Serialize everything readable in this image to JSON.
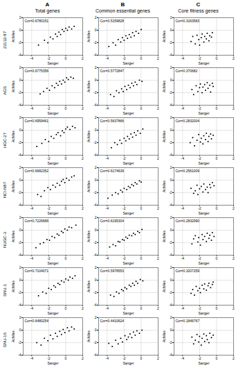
{
  "panel_labels": [
    "A",
    "B",
    "C"
  ],
  "column_titles": [
    "Total genes",
    "Common essential genes",
    "Core fitness genes"
  ],
  "row_labels": [
    "23132-87",
    "AGS",
    "HGC-27",
    "NCI-N87",
    "NUGC-3",
    "SNU-1",
    "SNU-16"
  ],
  "chart_data": [
    {
      "type": "scatter",
      "annotation": "Cor=0.6780151",
      "xlabel": "Sanger",
      "ylabel": "Achilles",
      "xlim": [
        -5,
        2
      ],
      "ylim": [
        -4,
        2
      ],
      "xticks": [
        -4,
        -2,
        0,
        2
      ],
      "yticks": [
        -4,
        -2,
        0,
        2
      ],
      "grid": true,
      "color": "#000000",
      "marker": "circle",
      "x": [
        -3.2,
        -2.5,
        -2.1,
        -1.8,
        -1.5,
        -1.2,
        -1.0,
        -0.8,
        -0.6,
        -0.4,
        -0.2,
        0.0,
        0.2,
        0.4,
        0.7,
        1.0
      ],
      "y": [
        -2.4,
        -1.6,
        -2.0,
        -1.1,
        -1.4,
        -0.6,
        -1.0,
        -0.3,
        -0.7,
        0.1,
        -0.2,
        0.3,
        0.0,
        0.5,
        0.2,
        0.6
      ]
    },
    {
      "type": "scatter",
      "annotation": "Cor=0.5159828",
      "xlabel": "Sanger",
      "ylabel": "Achilles",
      "xlim": [
        -5,
        2
      ],
      "ylim": [
        -4,
        2
      ],
      "xticks": [
        -4,
        -2,
        0,
        2
      ],
      "yticks": [
        -4,
        -2,
        0,
        2
      ],
      "grid": true,
      "color": "#000000",
      "marker": "circle",
      "x": [
        -3.8,
        -3.3,
        -3.0,
        -2.7,
        -2.4,
        -2.2,
        -2.0,
        -1.8,
        -1.6,
        -1.4,
        -1.2,
        -1.0,
        -0.8,
        -0.6,
        -0.3,
        0.0
      ],
      "y": [
        -2.6,
        -2.0,
        -2.4,
        -1.5,
        -1.9,
        -1.2,
        -1.6,
        -0.9,
        -1.3,
        -0.7,
        -1.1,
        -0.4,
        -0.9,
        -0.2,
        -0.5,
        0.1
      ]
    },
    {
      "type": "scatter",
      "annotation": "Cor=0.3163583",
      "xlabel": "Sanger",
      "ylabel": "Achilles",
      "xlim": [
        -5,
        2
      ],
      "ylim": [
        -4,
        2
      ],
      "xticks": [
        -4,
        -2,
        0,
        2
      ],
      "yticks": [
        -4,
        -2,
        0,
        2
      ],
      "grid": true,
      "color": "#000000",
      "marker": "circle",
      "x": [
        -3.0,
        -2.8,
        -2.5,
        -2.3,
        -2.1,
        -2.0,
        -1.8,
        -1.7,
        -1.5,
        -1.4,
        -1.2,
        -1.1,
        -0.9,
        -0.8,
        -0.6,
        -0.5
      ],
      "y": [
        -1.8,
        -1.0,
        -2.2,
        -0.8,
        -1.5,
        -2.4,
        -1.2,
        -0.6,
        -1.9,
        -1.0,
        -1.4,
        -0.5,
        -1.7,
        -0.9,
        -1.1,
        -0.4
      ]
    },
    {
      "type": "scatter",
      "annotation": "Cor=0.6775356",
      "xlabel": "Sanger",
      "ylabel": "Achilles",
      "xlim": [
        -5,
        2
      ],
      "ylim": [
        -4,
        2
      ],
      "xticks": [
        -4,
        -2,
        0,
        2
      ],
      "yticks": [
        -4,
        -2,
        0,
        2
      ],
      "grid": true,
      "color": "#000000",
      "marker": "circle",
      "x": [
        -3.0,
        -2.6,
        -2.2,
        -1.9,
        -1.6,
        -1.3,
        -1.1,
        -0.9,
        -0.7,
        -0.5,
        -0.3,
        -0.1,
        0.1,
        0.3,
        0.6,
        0.9
      ],
      "y": [
        -2.2,
        -1.8,
        -1.3,
        -1.6,
        -0.9,
        -1.2,
        -0.5,
        -0.8,
        -0.2,
        -0.6,
        0.0,
        -0.3,
        0.4,
        0.1,
        0.5,
        0.3
      ]
    },
    {
      "type": "scatter",
      "annotation": "Cor=0.5772847",
      "xlabel": "Sanger",
      "ylabel": "Achilles",
      "xlim": [
        -5,
        2
      ],
      "ylim": [
        -4,
        2
      ],
      "xticks": [
        -4,
        -2,
        0,
        2
      ],
      "yticks": [
        -4,
        -2,
        0,
        2
      ],
      "grid": true,
      "color": "#000000",
      "marker": "circle",
      "x": [
        -3.6,
        -3.2,
        -2.9,
        -2.6,
        -2.3,
        -2.1,
        -1.9,
        -1.7,
        -1.5,
        -1.3,
        -1.1,
        -0.9,
        -0.7,
        -0.5,
        -0.2,
        0.1
      ],
      "y": [
        -2.3,
        -2.6,
        -1.7,
        -2.0,
        -1.4,
        -1.8,
        -1.0,
        -1.5,
        -0.8,
        -1.2,
        -0.5,
        -0.9,
        -0.3,
        -0.7,
        0.0,
        -0.2
      ]
    },
    {
      "type": "scatter",
      "annotation": "Cor=0.370682",
      "xlabel": "Sanger",
      "ylabel": "Achilles",
      "xlim": [
        -5,
        2
      ],
      "ylim": [
        -4,
        2
      ],
      "xticks": [
        -4,
        -2,
        0,
        2
      ],
      "yticks": [
        -4,
        -2,
        0,
        2
      ],
      "grid": true,
      "color": "#000000",
      "marker": "circle",
      "x": [
        -2.9,
        -2.7,
        -2.4,
        -2.2,
        -2.0,
        -1.9,
        -1.7,
        -1.6,
        -1.4,
        -1.3,
        -1.1,
        -1.0,
        -0.8,
        -0.7,
        -0.5,
        -0.4
      ],
      "y": [
        -1.5,
        -2.3,
        -0.9,
        -1.8,
        -1.2,
        -0.6,
        -2.0,
        -1.1,
        -0.7,
        -1.6,
        -0.4,
        -1.3,
        -0.8,
        -1.9,
        -0.5,
        -1.0
      ]
    },
    {
      "type": "scatter",
      "annotation": "Cor=0.6959461",
      "xlabel": "Sanger",
      "ylabel": "Achilles",
      "xlim": [
        -5,
        2
      ],
      "ylim": [
        -4,
        2
      ],
      "xticks": [
        -4,
        -2,
        0,
        2
      ],
      "yticks": [
        -4,
        -2,
        0,
        2
      ],
      "grid": true,
      "color": "#000000",
      "marker": "circle",
      "x": [
        -3.4,
        -2.8,
        -2.4,
        -2.0,
        -1.7,
        -1.4,
        -1.1,
        -0.9,
        -0.6,
        -0.4,
        -0.2,
        0.0,
        0.2,
        0.5,
        0.8,
        1.1
      ],
      "y": [
        -2.6,
        -2.1,
        -1.5,
        -1.8,
        -1.0,
        -1.3,
        -0.7,
        -0.4,
        -0.9,
        -0.1,
        -0.4,
        0.2,
        0.5,
        0.1,
        0.6,
        0.4
      ]
    },
    {
      "type": "scatter",
      "annotation": "Cor=0.5637866",
      "xlabel": "Sanger",
      "ylabel": "Achilles",
      "xlim": [
        -5,
        2
      ],
      "ylim": [
        -4,
        2
      ],
      "xticks": [
        -4,
        -2,
        0,
        2
      ],
      "yticks": [
        -4,
        -2,
        0,
        2
      ],
      "grid": true,
      "color": "#000000",
      "marker": "circle",
      "x": [
        -3.5,
        -3.1,
        -2.8,
        -2.5,
        -2.3,
        -2.0,
        -1.8,
        -1.6,
        -1.4,
        -1.2,
        -1.0,
        -0.8,
        -0.6,
        -0.4,
        -0.1,
        0.2
      ],
      "y": [
        -2.8,
        -2.0,
        -2.3,
        -1.6,
        -2.1,
        -1.3,
        -1.7,
        -1.0,
        -1.4,
        -0.6,
        -1.1,
        -0.4,
        -0.8,
        -0.1,
        -0.5,
        0.2
      ]
    },
    {
      "type": "scatter",
      "annotation": "Cor=0.2832004",
      "xlabel": "Sanger",
      "ylabel": "Achilles",
      "xlim": [
        -5,
        2
      ],
      "ylim": [
        -4,
        2
      ],
      "xticks": [
        -4,
        -2,
        0,
        2
      ],
      "yticks": [
        -4,
        -2,
        0,
        2
      ],
      "grid": true,
      "color": "#000000",
      "marker": "circle",
      "x": [
        -3.1,
        -2.8,
        -2.6,
        -2.3,
        -2.1,
        -1.9,
        -1.8,
        -1.6,
        -1.5,
        -1.3,
        -1.2,
        -1.0,
        -0.9,
        -0.7,
        -0.6,
        -0.4
      ],
      "y": [
        -2.0,
        -1.2,
        -2.5,
        -1.6,
        -0.7,
        -1.9,
        -1.3,
        -2.2,
        -0.9,
        -1.5,
        -0.5,
        -1.8,
        -1.0,
        -0.6,
        -1.4,
        -0.8
      ]
    },
    {
      "type": "scatter",
      "annotation": "Cor=0.6682352",
      "xlabel": "Sanger",
      "ylabel": "Achilles",
      "xlim": [
        -5,
        2
      ],
      "ylim": [
        -4,
        2
      ],
      "xticks": [
        -4,
        -2,
        0,
        2
      ],
      "yticks": [
        -4,
        -2,
        0,
        2
      ],
      "grid": true,
      "color": "#000000",
      "marker": "circle",
      "x": [
        -3.3,
        -2.9,
        -2.5,
        -2.1,
        -1.8,
        -1.5,
        -1.2,
        -1.0,
        -0.7,
        -0.5,
        -0.3,
        -0.1,
        0.1,
        0.4,
        0.7,
        1.0
      ],
      "y": [
        -2.3,
        -2.6,
        -1.7,
        -1.2,
        -1.5,
        -0.8,
        -1.1,
        -0.5,
        -0.8,
        -0.2,
        0.1,
        -0.4,
        0.3,
        0.0,
        0.5,
        0.7
      ]
    },
    {
      "type": "scatter",
      "annotation": "Cor=0.6174639",
      "xlabel": "Sanger",
      "ylabel": "Achilles",
      "xlim": [
        -5,
        2
      ],
      "ylim": [
        -4,
        2
      ],
      "xticks": [
        -4,
        -2,
        0,
        2
      ],
      "yticks": [
        -4,
        -2,
        0,
        2
      ],
      "grid": true,
      "color": "#000000",
      "marker": "circle",
      "x": [
        -3.9,
        -3.4,
        -3.0,
        -2.7,
        -2.4,
        -2.2,
        -2.0,
        -1.7,
        -1.5,
        -1.3,
        -1.1,
        -0.9,
        -0.7,
        -0.5,
        -0.2,
        0.0
      ],
      "y": [
        -2.9,
        -2.4,
        -2.0,
        -2.2,
        -1.6,
        -1.9,
        -1.3,
        -1.5,
        -1.0,
        -1.2,
        -0.7,
        -0.9,
        -0.4,
        -0.6,
        -0.1,
        -0.3
      ]
    },
    {
      "type": "scatter",
      "annotation": "Cor=0.2561009",
      "xlabel": "Sanger",
      "ylabel": "Achilles",
      "xlim": [
        -5,
        2
      ],
      "ylim": [
        -4,
        2
      ],
      "xticks": [
        -4,
        -2,
        0,
        2
      ],
      "yticks": [
        -4,
        -2,
        0,
        2
      ],
      "grid": true,
      "color": "#000000",
      "marker": "circle",
      "x": [
        -3.0,
        -2.7,
        -2.5,
        -2.3,
        -2.2,
        -2.0,
        -1.8,
        -1.6,
        -1.5,
        -1.3,
        -1.1,
        -1.0,
        -0.8,
        -0.7,
        -0.5,
        -0.3
      ],
      "y": [
        -1.3,
        -2.1,
        -1.7,
        -0.8,
        -2.3,
        -1.4,
        -1.0,
        -1.9,
        -0.6,
        -1.5,
        -1.1,
        -2.0,
        -0.7,
        -1.2,
        -0.4,
        -0.9
      ]
    },
    {
      "type": "scatter",
      "annotation": "Cor=0.7226689",
      "xlabel": "Sanger",
      "ylabel": "Achilles",
      "xlim": [
        -5,
        2
      ],
      "ylim": [
        -4,
        2
      ],
      "xticks": [
        -4,
        -2,
        0,
        2
      ],
      "yticks": [
        -4,
        -2,
        0,
        2
      ],
      "grid": true,
      "color": "#000000",
      "marker": "circle",
      "x": [
        -3.5,
        -3.0,
        -2.6,
        -2.2,
        -1.9,
        -1.6,
        -1.3,
        -1.0,
        -0.8,
        -0.5,
        -0.3,
        -0.1,
        0.2,
        0.4,
        0.7,
        1.2
      ],
      "y": [
        -2.8,
        -2.2,
        -2.0,
        -1.5,
        -1.6,
        -1.0,
        -1.2,
        -0.6,
        -0.8,
        -0.2,
        -0.4,
        0.2,
        0.0,
        0.5,
        0.4,
        0.8
      ]
    },
    {
      "type": "scatter",
      "annotation": "Cor=0.6195304",
      "xlabel": "Sanger",
      "ylabel": "Achilles",
      "xlim": [
        -5,
        2
      ],
      "ylim": [
        -4,
        2
      ],
      "xticks": [
        -4,
        -2,
        0,
        2
      ],
      "yticks": [
        -4,
        -2,
        0,
        2
      ],
      "grid": true,
      "color": "#000000",
      "marker": "circle",
      "x": [
        -3.7,
        -3.3,
        -3.0,
        -2.7,
        -2.5,
        -2.2,
        -2.0,
        -1.8,
        -1.6,
        -1.4,
        -1.1,
        -0.9,
        -0.7,
        -0.4,
        -0.2,
        0.1
      ],
      "y": [
        -2.7,
        -2.3,
        -2.5,
        -1.8,
        -1.9,
        -1.5,
        -1.6,
        -1.1,
        -1.3,
        -0.8,
        -0.9,
        -0.5,
        -0.7,
        -0.2,
        -0.4,
        0.1
      ]
    },
    {
      "type": "scatter",
      "annotation": "Cor=0.2832990",
      "xlabel": "Sanger",
      "ylabel": "Achilles",
      "xlim": [
        -5,
        2
      ],
      "ylim": [
        -4,
        2
      ],
      "xticks": [
        -4,
        -2,
        0,
        2
      ],
      "yticks": [
        -4,
        -2,
        0,
        2
      ],
      "grid": true,
      "color": "#000000",
      "marker": "circle",
      "x": [
        -2.9,
        -2.7,
        -2.5,
        -2.2,
        -2.1,
        -1.9,
        -1.7,
        -1.6,
        -1.4,
        -1.2,
        -1.1,
        -0.9,
        -0.8,
        -0.6,
        -0.5,
        -0.3
      ],
      "y": [
        -2.2,
        -1.4,
        -0.9,
        -1.9,
        -1.2,
        -2.4,
        -0.7,
        -1.5,
        -1.0,
        -1.8,
        -0.5,
        -1.3,
        -0.8,
        -1.6,
        -0.4,
        -1.0
      ]
    },
    {
      "type": "scatter",
      "annotation": "Cor=0.7104071",
      "xlabel": "Sanger",
      "ylabel": "Achilles",
      "xlim": [
        -5,
        2
      ],
      "ylim": [
        -4,
        2
      ],
      "xticks": [
        -4,
        -2,
        0,
        2
      ],
      "yticks": [
        -4,
        -2,
        0,
        2
      ],
      "grid": true,
      "color": "#000000",
      "marker": "circle",
      "x": [
        -3.2,
        -2.7,
        -2.3,
        -2.0,
        -1.7,
        -1.4,
        -1.2,
        -0.9,
        -0.7,
        -0.5,
        -0.2,
        0.0,
        0.3,
        0.5,
        0.8,
        1.1
      ],
      "y": [
        -2.5,
        -1.9,
        -2.1,
        -1.3,
        -1.5,
        -0.9,
        -1.1,
        -0.5,
        -0.7,
        -0.1,
        -0.3,
        0.2,
        0.0,
        0.5,
        0.3,
        0.7
      ]
    },
    {
      "type": "scatter",
      "annotation": "Cor=0.5978553",
      "xlabel": "Sanger",
      "ylabel": "Achilles",
      "xlim": [
        -5,
        2
      ],
      "ylim": [
        -4,
        2
      ],
      "xticks": [
        -4,
        -2,
        0,
        2
      ],
      "yticks": [
        -4,
        -2,
        0,
        2
      ],
      "grid": true,
      "color": "#000000",
      "marker": "circle",
      "x": [
        -3.6,
        -3.2,
        -2.9,
        -2.6,
        -2.3,
        -2.1,
        -1.9,
        -1.7,
        -1.4,
        -1.2,
        -1.0,
        -0.8,
        -0.6,
        -0.4,
        -0.1,
        0.2
      ],
      "y": [
        -2.4,
        -2.6,
        -1.9,
        -2.1,
        -1.5,
        -1.7,
        -1.2,
        -1.4,
        -0.8,
        -1.0,
        -0.5,
        -0.8,
        -0.2,
        -0.5,
        0.1,
        -0.1
      ]
    },
    {
      "type": "scatter",
      "annotation": "Cor=0.3207259",
      "xlabel": "Sanger",
      "ylabel": "Achilles",
      "xlim": [
        -5,
        2
      ],
      "ylim": [
        -4,
        2
      ],
      "xticks": [
        -4,
        -2,
        0,
        2
      ],
      "yticks": [
        -4,
        -2,
        0,
        2
      ],
      "grid": true,
      "color": "#000000",
      "marker": "circle",
      "x": [
        -3.0,
        -2.8,
        -2.6,
        -2.4,
        -2.2,
        -2.0,
        -1.9,
        -1.7,
        -1.5,
        -1.4,
        -1.2,
        -1.0,
        -0.9,
        -0.7,
        -0.5,
        -0.4
      ],
      "y": [
        -2.1,
        -1.5,
        -2.4,
        -1.0,
        -1.7,
        -1.3,
        -2.0,
        -0.8,
        -1.4,
        -0.6,
        -1.6,
        -0.9,
        -0.5,
        -1.2,
        -0.7,
        -0.3
      ]
    },
    {
      "type": "scatter",
      "annotation": "Cor=0.6480254",
      "xlabel": "Sanger",
      "ylabel": "Achilles",
      "xlim": [
        -5,
        2
      ],
      "ylim": [
        -4,
        2
      ],
      "xticks": [
        -4,
        -2,
        0,
        2
      ],
      "yticks": [
        -4,
        -2,
        0,
        2
      ],
      "grid": true,
      "color": "#000000",
      "marker": "circle",
      "x": [
        -3.4,
        -2.9,
        -2.5,
        -2.1,
        -1.8,
        -1.5,
        -1.2,
        -1.0,
        -0.7,
        -0.5,
        -0.3,
        -0.1,
        0.2,
        0.4,
        0.7,
        1.0
      ],
      "y": [
        -2.0,
        -2.4,
        -1.3,
        -1.7,
        -0.8,
        -1.4,
        -0.5,
        -1.0,
        -0.2,
        -0.7,
        0.1,
        -0.4,
        0.4,
        -0.1,
        0.5,
        0.2
      ]
    },
    {
      "type": "scatter",
      "annotation": "Cor=0.4410624",
      "xlabel": "Sanger",
      "ylabel": "Achilles",
      "xlim": [
        -5,
        2
      ],
      "ylim": [
        -4,
        2
      ],
      "xticks": [
        -4,
        -2,
        0,
        2
      ],
      "yticks": [
        -4,
        -2,
        0,
        2
      ],
      "grid": true,
      "color": "#000000",
      "marker": "circle",
      "x": [
        -3.8,
        -3.4,
        -3.0,
        -2.7,
        -2.4,
        -2.2,
        -1.9,
        -1.7,
        -1.5,
        -1.3,
        -1.1,
        -0.9,
        -0.7,
        -0.5,
        -0.2,
        0.1
      ],
      "y": [
        -2.1,
        -2.6,
        -1.6,
        -2.2,
        -1.3,
        -1.9,
        -0.9,
        -1.5,
        -1.1,
        -0.6,
        -1.2,
        -0.3,
        -0.8,
        -0.1,
        -0.5,
        0.0
      ]
    },
    {
      "type": "scatter",
      "annotation": "Cor=0.1846767",
      "xlabel": "Sanger",
      "ylabel": "Achilles",
      "xlim": [
        -5,
        2
      ],
      "ylim": [
        -4,
        2
      ],
      "xticks": [
        -4,
        -2,
        0,
        2
      ],
      "yticks": [
        -4,
        -2,
        0,
        2
      ],
      "grid": true,
      "color": "#000000",
      "marker": "circle",
      "x": [
        -2.9,
        -2.7,
        -2.5,
        -2.3,
        -2.1,
        -2.0,
        -1.8,
        -1.7,
        -1.5,
        -1.4,
        -1.2,
        -1.1,
        -0.9,
        -0.8,
        -0.6,
        -0.4
      ],
      "y": [
        -1.1,
        -2.2,
        -1.6,
        -0.7,
        -1.9,
        -1.0,
        -2.4,
        -1.3,
        -0.6,
        -1.8,
        -0.9,
        -1.5,
        -2.0,
        -0.5,
        -1.2,
        -0.8
      ]
    }
  ]
}
